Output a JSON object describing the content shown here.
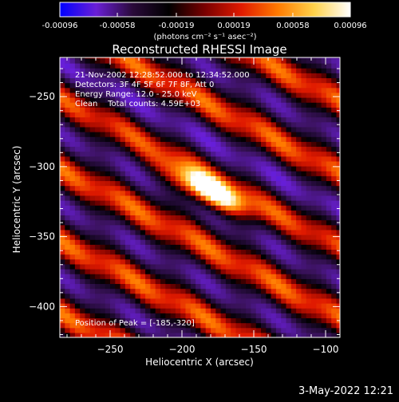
{
  "colorbar": {
    "tick_labels": [
      "-0.00096",
      "-0.00058",
      "-0.00019",
      "0.00019",
      "0.00058",
      "0.00096"
    ],
    "range": [
      -0.00096,
      0.00096
    ],
    "unit_label": "(photons cm⁻² s⁻¹ asec⁻²)",
    "colors": [
      "#0000ff",
      "#6a1fd6",
      "#2a0a3a",
      "#000000",
      "#7a0000",
      "#e01a00",
      "#ff7a00",
      "#ffd24a",
      "#ffffff"
    ]
  },
  "chart_data": {
    "type": "heatmap",
    "title": "Reconstructed RHESSI Image",
    "xlabel": "Heliocentric X (arcsec)",
    "ylabel": "Heliocentric Y (arcsec)",
    "xlim": [
      -285,
      -90
    ],
    "ylim": [
      -422,
      -222
    ],
    "x_ticks": [
      -250,
      -200,
      -150,
      -100
    ],
    "y_ticks": [
      -250,
      -300,
      -350,
      -400
    ],
    "x_tick_labels": [
      "−250",
      "−200",
      "−150",
      "−100"
    ],
    "y_tick_labels": [
      "−250",
      "−300",
      "−350",
      "−400"
    ],
    "peak_position": [
      -185,
      -320
    ],
    "peak_value": 0.00096,
    "annotations": [
      "21-Nov-2002 12:28:52.000 to 12:34:52.000",
      "Detectors: 3F 4F 5F 6F 7F 8F, Att 0",
      "Energy Range: 12.0 - 25.0 keV",
      "Clean    Total counts: 4.59E+03"
    ],
    "peak_label": "Position of Peak = [-185,-320]"
  },
  "footer": {
    "timestamp": "3-May-2022 12:21"
  }
}
